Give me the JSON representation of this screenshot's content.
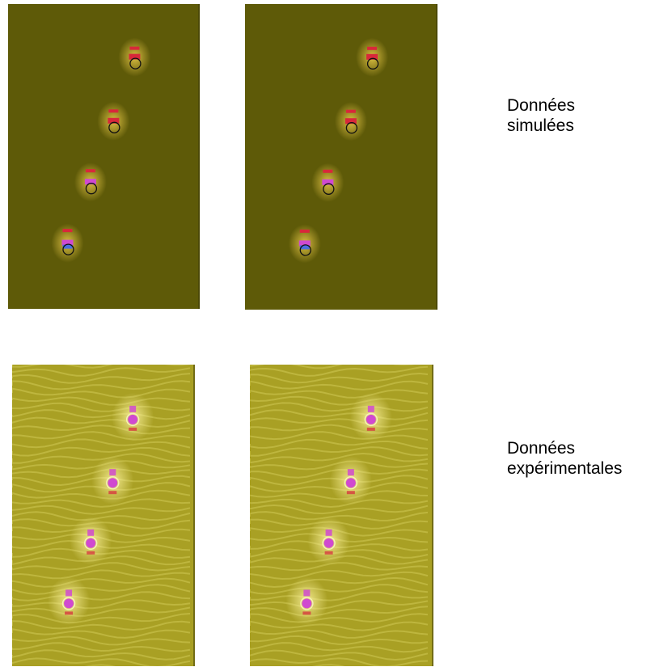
{
  "labels": {
    "simulated": [
      "Données",
      "simulées"
    ],
    "experimental": [
      "Données",
      "expérimentales"
    ]
  },
  "colors": {
    "simulated_background": "#5e5a08",
    "experimental_background": "#a9a024",
    "target_core_red": "#d8283a",
    "target_core_magenta": "#d04ad0",
    "target_core_blue": "#4a6ee0",
    "marker_circle_simulated": "#111111",
    "marker_circle_experimental": "#f4f0b8"
  },
  "panels": [
    {
      "id": "p-sim-1",
      "kind": "simulated"
    },
    {
      "id": "p-sim-2",
      "kind": "simulated"
    },
    {
      "id": "p-exp-1",
      "kind": "experimental"
    },
    {
      "id": "p-exp-2",
      "kind": "experimental"
    }
  ],
  "targets_per_panel": 4
}
